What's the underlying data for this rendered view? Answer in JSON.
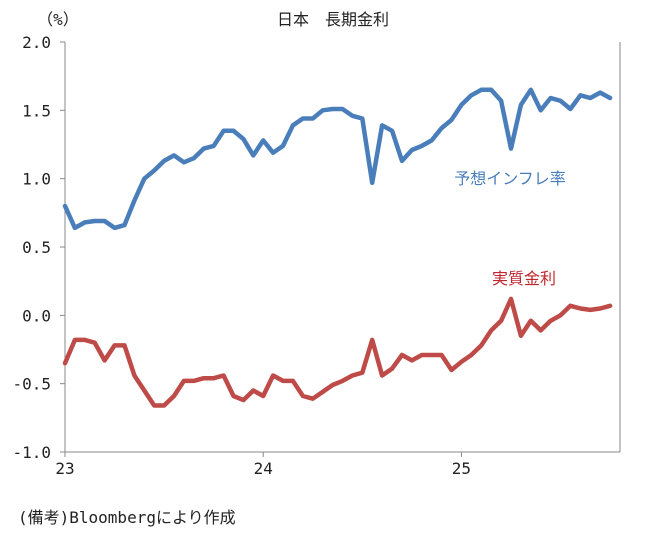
{
  "chart_data": {
    "type": "line",
    "title": "日本　長期金利",
    "ylabel": "（%）",
    "xlabel": "",
    "ylim": [
      -1.0,
      2.0
    ],
    "xlim": [
      23,
      25.8
    ],
    "yticks": [
      2.0,
      1.5,
      1.0,
      0.5,
      0.0,
      -0.5,
      -1.0
    ],
    "ytick_labels": [
      "2.0",
      "1.5",
      "1.0",
      "0.5",
      "0.0",
      "-0.5",
      "-1.0"
    ],
    "xticks": [
      23,
      24,
      25
    ],
    "xtick_labels": [
      "23",
      "24",
      "25"
    ],
    "grid": false,
    "x": [
      23.0,
      23.05,
      23.1,
      23.15,
      23.2,
      23.25,
      23.3,
      23.35,
      23.4,
      23.45,
      23.5,
      23.55,
      23.6,
      23.65,
      23.7,
      23.75,
      23.8,
      23.85,
      23.9,
      23.95,
      24.0,
      24.05,
      24.1,
      24.15,
      24.2,
      24.25,
      24.3,
      24.35,
      24.4,
      24.45,
      24.5,
      24.55,
      24.6,
      24.65,
      24.7,
      24.75,
      24.8,
      24.85,
      24.9,
      24.95,
      25.0,
      25.05,
      25.1,
      25.15,
      25.2,
      25.25,
      25.3,
      25.35,
      25.4,
      25.45,
      25.5,
      25.55,
      25.6,
      25.65,
      25.7,
      25.75
    ],
    "series": [
      {
        "name": "予想インフレ率",
        "color": "#4a7ebb",
        "values": [
          0.8,
          0.64,
          0.68,
          0.69,
          0.69,
          0.64,
          0.66,
          0.84,
          1.0,
          1.06,
          1.13,
          1.17,
          1.12,
          1.15,
          1.22,
          1.24,
          1.35,
          1.35,
          1.29,
          1.17,
          1.28,
          1.19,
          1.24,
          1.39,
          1.44,
          1.44,
          1.5,
          1.51,
          1.51,
          1.46,
          1.44,
          0.97,
          1.39,
          1.35,
          1.13,
          1.21,
          1.24,
          1.28,
          1.37,
          1.43,
          1.54,
          1.61,
          1.65,
          1.65,
          1.57,
          1.22,
          1.54,
          1.65,
          1.5,
          1.59,
          1.57,
          1.51,
          1.61,
          1.59,
          1.63,
          1.59
        ]
      },
      {
        "name": "実質金利",
        "color": "#be4b48",
        "values": [
          -0.35,
          -0.18,
          -0.18,
          -0.2,
          -0.33,
          -0.22,
          -0.22,
          -0.44,
          -0.55,
          -0.66,
          -0.66,
          -0.59,
          -0.48,
          -0.48,
          -0.46,
          -0.46,
          -0.44,
          -0.59,
          -0.62,
          -0.55,
          -0.59,
          -0.44,
          -0.48,
          -0.48,
          -0.59,
          -0.61,
          -0.56,
          -0.51,
          -0.48,
          -0.44,
          -0.42,
          -0.18,
          -0.44,
          -0.39,
          -0.29,
          -0.33,
          -0.29,
          -0.29,
          -0.29,
          -0.4,
          -0.34,
          -0.29,
          -0.22,
          -0.11,
          -0.04,
          0.12,
          -0.15,
          -0.04,
          -0.11,
          -0.04,
          0.0,
          0.07,
          0.05,
          0.04,
          0.05,
          0.07
        ]
      }
    ],
    "annotations": [
      "予想インフレ率",
      "実質金利"
    ],
    "annotation_colors": [
      "#4a7ebb",
      "#c0262c"
    ],
    "legend": "inline-labels"
  },
  "footnote": "(備考)Bloombergにより作成"
}
